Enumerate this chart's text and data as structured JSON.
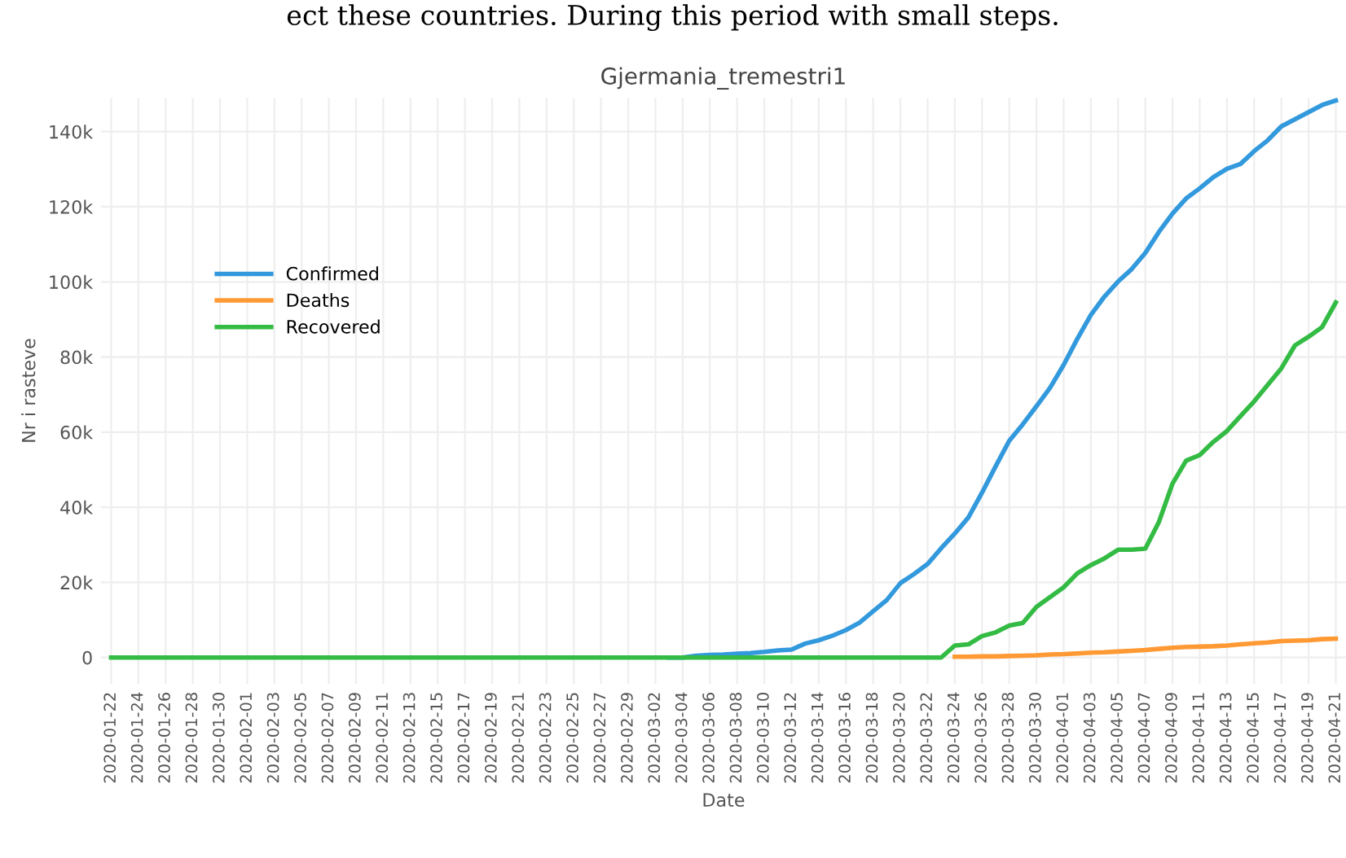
{
  "chart_data": {
    "type": "line",
    "title": "Gjermania_tremestri1",
    "xlabel": "Date",
    "ylabel": "Nr i rasteve",
    "annotations": [
      "ect these countries. During this period with small steps."
    ],
    "x": [
      "2020-01-22",
      "2020-02-28",
      "2020-02-29",
      "2020-03-01",
      "2020-03-02",
      "2020-03-03",
      "2020-03-04",
      "2020-03-05",
      "2020-03-06",
      "2020-03-07",
      "2020-03-08",
      "2020-03-09",
      "2020-03-10",
      "2020-03-11",
      "2020-03-12",
      "2020-03-13",
      "2020-03-14",
      "2020-03-15",
      "2020-03-16",
      "2020-03-17",
      "2020-03-18",
      "2020-03-19",
      "2020-03-20",
      "2020-03-21",
      "2020-03-22",
      "2020-03-23",
      "2020-03-24",
      "2020-03-25",
      "2020-03-26",
      "2020-03-27",
      "2020-03-28",
      "2020-03-29",
      "2020-03-30",
      "2020-03-31",
      "2020-04-01",
      "2020-04-02",
      "2020-04-03",
      "2020-04-04",
      "2020-04-05",
      "2020-04-06",
      "2020-04-07",
      "2020-04-08",
      "2020-04-09",
      "2020-04-10",
      "2020-04-11",
      "2020-04-12",
      "2020-04-13",
      "2020-04-14",
      "2020-04-15",
      "2020-04-16",
      "2020-04-17",
      "2020-04-18",
      "2020-04-19",
      "2020-04-20",
      "2020-04-21"
    ],
    "series": [
      {
        "name": "Confirmed",
        "color": "#3399dd",
        "values": [
          null,
          null,
          null,
          null,
          null,
          0,
          0,
          500,
          700,
          800,
          1000,
          1200,
          1500,
          1900,
          2100,
          3700,
          4600,
          5800,
          7300,
          9300,
          12300,
          15300,
          19800,
          22200,
          24900,
          29100,
          33000,
          37300,
          43900,
          50900,
          57700,
          62100,
          66900,
          71800,
          77900,
          84800,
          91200,
          96100,
          100100,
          103400,
          107700,
          113300,
          118200,
          122200,
          124900,
          127900,
          130100,
          131400,
          134800,
          137700,
          141400,
          143300,
          145200,
          147100,
          148300
        ]
      },
      {
        "name": "Deaths",
        "color": "#ff9933",
        "values": [
          null,
          null,
          null,
          null,
          null,
          null,
          null,
          null,
          null,
          null,
          null,
          null,
          null,
          null,
          null,
          null,
          null,
          null,
          null,
          null,
          null,
          null,
          null,
          null,
          null,
          null,
          200,
          200,
          300,
          300,
          400,
          500,
          600,
          800,
          900,
          1100,
          1300,
          1400,
          1600,
          1800,
          2000,
          2300,
          2600,
          2800,
          2900,
          3000,
          3200,
          3500,
          3800,
          4000,
          4400,
          4500,
          4600,
          4900,
          5000
        ]
      },
      {
        "name": "Recovered",
        "color": "#33bb44",
        "values": [
          0,
          0,
          0,
          0,
          0,
          0,
          0,
          0,
          0,
          0,
          0,
          0,
          0,
          0,
          0,
          0,
          0,
          0,
          0,
          0,
          0,
          0,
          0,
          0,
          0,
          0,
          3200,
          3500,
          5700,
          6700,
          8500,
          9200,
          13500,
          16100,
          18700,
          22400,
          24600,
          26400,
          28700,
          28700,
          29000,
          36100,
          46300,
          52400,
          53900,
          57400,
          60300,
          64300,
          68200,
          72600,
          77000,
          83100,
          85400,
          88000,
          94500
        ]
      }
    ],
    "xlim": [
      "2020-01-21T06:00",
      "2020-04-21T18:00"
    ],
    "xticks": [
      "2020-01-22",
      "2020-01-24",
      "2020-01-26",
      "2020-01-28",
      "2020-01-30",
      "2020-02-01",
      "2020-02-03",
      "2020-02-05",
      "2020-02-07",
      "2020-02-09",
      "2020-02-11",
      "2020-02-13",
      "2020-02-15",
      "2020-02-17",
      "2020-02-19",
      "2020-02-21",
      "2020-02-23",
      "2020-02-25",
      "2020-02-27",
      "2020-02-29",
      "2020-03-02",
      "2020-03-04",
      "2020-03-06",
      "2020-03-08",
      "2020-03-10",
      "2020-03-12",
      "2020-03-14",
      "2020-03-16",
      "2020-03-18",
      "2020-03-20",
      "2020-03-22",
      "2020-03-24",
      "2020-03-26",
      "2020-03-28",
      "2020-03-30",
      "2020-04-01",
      "2020-04-03",
      "2020-04-05",
      "2020-04-07",
      "2020-04-09",
      "2020-04-11",
      "2020-04-13",
      "2020-04-15",
      "2020-04-17",
      "2020-04-19",
      "2020-04-21"
    ],
    "ylim": [
      -7000,
      149000
    ],
    "yticks": [
      0,
      {
        "value": 20000,
        "label": "20k"
      },
      {
        "value": 40000,
        "label": "40k"
      },
      {
        "value": 60000,
        "label": "60k"
      },
      {
        "value": 80000,
        "label": "80k"
      },
      {
        "value": 100000,
        "label": "100k"
      },
      {
        "value": 120000,
        "label": "120k"
      },
      {
        "value": 140000,
        "label": "140k"
      }
    ],
    "grid": true,
    "legend": "top left",
    "marker": "none",
    "line_style": "solid"
  }
}
